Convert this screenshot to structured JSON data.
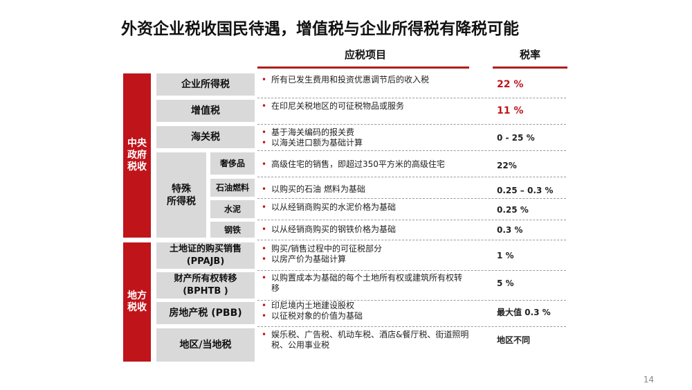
{
  "title": "外资企业税收国民待遇，增值税与企业所得税有降税可能",
  "header": {
    "item_col": "应税项目",
    "rate_col": "税率"
  },
  "sections": {
    "central": "中央\n政府\n税收",
    "local": "地方\n税收"
  },
  "special_group": "特殊\n所得税",
  "rows": [
    {
      "label": "企业所得税",
      "bullets": [
        "所有已发生费用和投资优惠调节后的收入税"
      ],
      "rate": "22 %"
    },
    {
      "label": "增值税",
      "bullets": [
        "在印尼关税地区的可征税物品或服务"
      ],
      "rate": "11 %"
    },
    {
      "label": "海关税",
      "bullets": [
        "基于海关编码的报关费",
        "以海关进口额为基础计算"
      ],
      "rate": "0  - 25 %"
    },
    {
      "label": "奢侈品",
      "bullets": [
        "高级住宅的销售，即超过350平方米的高级住宅"
      ],
      "rate": "22%"
    },
    {
      "label": "石油燃料",
      "bullets": [
        "以购买的石油 燃料为基础"
      ],
      "rate": "0.25 – 0.3 %"
    },
    {
      "label": "水泥",
      "bullets": [
        "以从经销商购买的水泥价格为基础"
      ],
      "rate": "0.25 %"
    },
    {
      "label": "钢铁",
      "bullets": [
        "以从经销商购买的钢铁价格为基础"
      ],
      "rate": "0.3 %"
    },
    {
      "label": "土地证的购买销售\n(PPAJB)",
      "bullets": [
        "购买/销售过程中的可征税部分",
        "以房产价为基础计算"
      ],
      "rate": "1 %"
    },
    {
      "label": "财产所有权转移\n(BPHTB )",
      "bullets": [
        "以购置成本为基础的每个土地所有权或建筑所有权转移"
      ],
      "rate": "5 %"
    },
    {
      "label": "房地产税 (PBB)",
      "bullets": [
        "印尼境内土地建设股权",
        "以征税对象的价值为基础"
      ],
      "rate": "最大值 0.3 %"
    },
    {
      "label": "地区/当地税",
      "bullets": [
        "娱乐税、广告税、机动车税、酒店&餐厅税、街道照明税、公用事业税"
      ],
      "rate": "地区不同"
    }
  ],
  "page_number": "14",
  "colors": {
    "accent": "#c0141b",
    "cell": "#d9d9d9"
  }
}
